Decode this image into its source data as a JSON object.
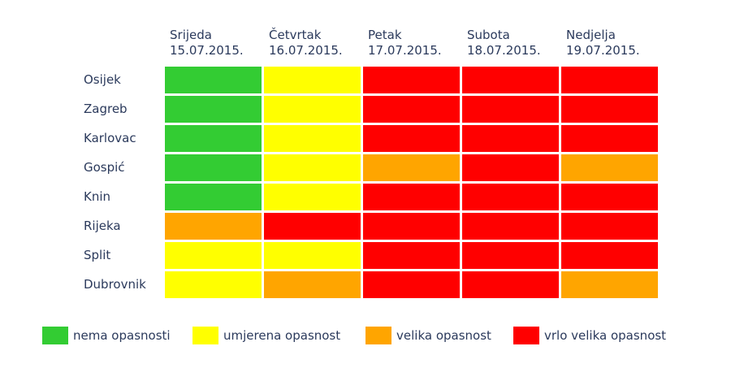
{
  "chart_data": {
    "type": "heatmap",
    "days": [
      {
        "name": "Srijeda",
        "date": "15.07.2015."
      },
      {
        "name": "Četvrtak",
        "date": "16.07.2015."
      },
      {
        "name": "Petak",
        "date": "17.07.2015."
      },
      {
        "name": "Subota",
        "date": "18.07.2015."
      },
      {
        "name": "Nedjelja",
        "date": "19.07.2015."
      }
    ],
    "cities": [
      "Osijek",
      "Zagreb",
      "Karlovac",
      "Gospić",
      "Knin",
      "Rijeka",
      "Split",
      "Dubrovnik"
    ],
    "levels": [
      {
        "id": 0,
        "label": "nema opasnosti",
        "color": "#33cc33"
      },
      {
        "id": 1,
        "label": "umjerena opasnost",
        "color": "#ffff00"
      },
      {
        "id": 2,
        "label": "velika opasnost",
        "color": "#ffa500"
      },
      {
        "id": 3,
        "label": "vrlo velika opasnost",
        "color": "#ff0000"
      }
    ],
    "values": [
      [
        0,
        1,
        3,
        3,
        3
      ],
      [
        0,
        1,
        3,
        3,
        3
      ],
      [
        0,
        1,
        3,
        3,
        3
      ],
      [
        0,
        1,
        2,
        3,
        2
      ],
      [
        0,
        1,
        3,
        3,
        3
      ],
      [
        2,
        3,
        3,
        3,
        3
      ],
      [
        1,
        1,
        3,
        3,
        3
      ],
      [
        1,
        2,
        3,
        3,
        2
      ]
    ],
    "legend_position": "bottom"
  }
}
